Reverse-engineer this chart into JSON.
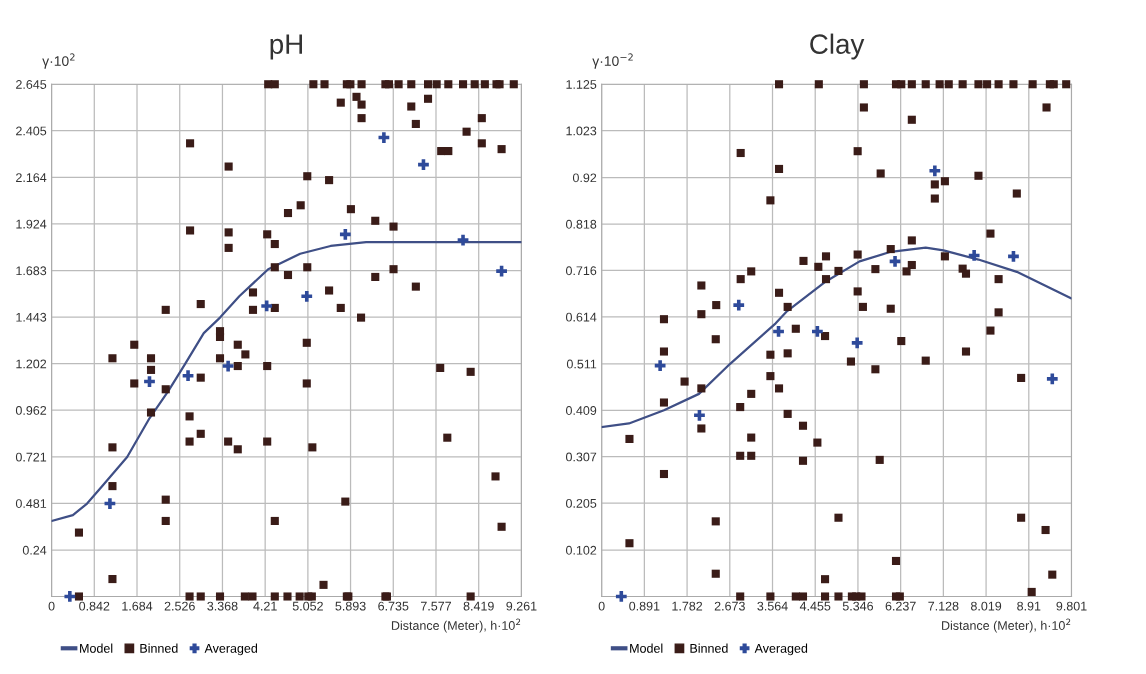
{
  "chart_data": [
    {
      "type": "scatter",
      "title": "pH",
      "xlabel": "Distance (Meter), h·10$^{2}$",
      "ylabel": "γ·10$^{2}$",
      "xlim": [
        0,
        9.261
      ],
      "ylim": [
        0,
        2.645
      ],
      "xticks": [
        0,
        0.842,
        1.684,
        2.526,
        3.368,
        4.21,
        5.052,
        5.893,
        6.735,
        7.577,
        8.419,
        9.261
      ],
      "yticks": [
        0.24,
        0.481,
        0.721,
        0.962,
        1.202,
        1.443,
        1.683,
        1.924,
        2.164,
        2.405,
        2.645
      ],
      "grid": true,
      "legend": "bottom left",
      "series": [
        {
          "name": "Model",
          "type": "line",
          "color": "#3f4f86",
          "marker": "none",
          "x": [
            0,
            0.42,
            0.7,
            1.0,
            1.49,
            1.93,
            2.3,
            2.63,
            3.0,
            3.32,
            3.7,
            4.27,
            4.9,
            5.5,
            6.2,
            7.5,
            9.261
          ],
          "values": [
            0.39,
            0.42,
            0.48,
            0.57,
            0.72,
            0.92,
            1.06,
            1.2,
            1.36,
            1.44,
            1.55,
            1.69,
            1.77,
            1.81,
            1.83,
            1.83,
            1.83
          ]
        },
        {
          "name": "Binned",
          "color": "#3a1c18",
          "marker": "square",
          "x": [
            0.54,
            2.72,
            2.94,
            3.32,
            3.81,
            3.96,
            4.4,
            4.65,
            4.89,
            5.06,
            5.13,
            5.82,
            5.85,
            6.58,
            6.61,
            8.26,
            0.54,
            1.2,
            1.2,
            1.2,
            1.2,
            1.63,
            1.63,
            1.96,
            1.96,
            1.96,
            2.25,
            2.25,
            2.25,
            2.72,
            2.72,
            2.94,
            2.94,
            3.32,
            3.32,
            3.48,
            3.67,
            3.67,
            3.67,
            3.82,
            4.25,
            4.25,
            4.4,
            5.03,
            5.03,
            5.14,
            5.36,
            5.79,
            7.66,
            7.8,
            8.26,
            8.75,
            8.87,
            6.1,
            4.27,
            4.4,
            5.16,
            5.38,
            5.82,
            5.89,
            6.11,
            6.58,
            6.65,
            6.84,
            7.09,
            7.42,
            7.59,
            7.82,
            8.11,
            8.34,
            8.54,
            8.77,
            8.83,
            9.11,
            5.7,
            6.01,
            6.11,
            6.11,
            7.09,
            7.42,
            7.18,
            8.48,
            8.18,
            8.48,
            7.68,
            7.82,
            8.87,
            2.73,
            3.49,
            5.04,
            5.47,
            4.91,
            4.66,
            5.9,
            6.38,
            6.74,
            2.73,
            3.49,
            3.49,
            4.25,
            4.4,
            4.4,
            4.66,
            5.04,
            6.74,
            6.38,
            7.18,
            5.47,
            3.97,
            3.97,
            4.4,
            2.94,
            2.25,
            5.7,
            3.32
          ],
          "values": [
            0,
            0,
            0,
            0,
            0,
            0,
            0,
            0,
            0,
            0,
            0,
            0,
            0,
            0,
            0,
            0,
            0.33,
            0.09,
            0.57,
            0.77,
            1.23,
            1.3,
            1.1,
            1.23,
            1.17,
            0.95,
            1.07,
            0.5,
            0.39,
            0.93,
            0.8,
            0.84,
            1.13,
            1.34,
            1.23,
            0.8,
            1.3,
            1.19,
            0.76,
            1.25,
            1.19,
            0.8,
            0.39,
            1.31,
            1.1,
            0.77,
            0.06,
            0.49,
            1.18,
            0.82,
            1.16,
            0.62,
            0.36,
            1.44,
            2.645,
            2.645,
            2.645,
            2.645,
            2.645,
            2.645,
            2.645,
            2.645,
            2.645,
            2.645,
            2.645,
            2.645,
            2.645,
            2.645,
            2.645,
            2.645,
            2.645,
            2.645,
            2.645,
            2.645,
            2.55,
            2.58,
            2.54,
            2.47,
            2.53,
            2.57,
            2.44,
            2.47,
            2.4,
            2.34,
            2.3,
            2.3,
            2.31,
            2.34,
            2.22,
            2.17,
            2.15,
            2.02,
            1.98,
            2.0,
            1.94,
            1.91,
            1.89,
            1.88,
            1.8,
            1.87,
            1.82,
            1.7,
            1.66,
            1.7,
            1.69,
            1.65,
            1.6,
            1.58,
            1.57,
            1.48,
            1.49,
            1.51,
            1.48,
            1.49,
            1.37
          ]
        },
        {
          "name": "Averaged",
          "color": "#2e4a9a",
          "marker": "cross",
          "x": [
            0.36,
            1.15,
            1.93,
            2.69,
            3.48,
            4.24,
            5.03,
            5.79,
            6.55,
            7.33,
            8.11,
            8.87
          ],
          "values": [
            0,
            0.48,
            1.11,
            1.14,
            1.19,
            1.5,
            1.55,
            1.87,
            2.37,
            2.23,
            1.84,
            1.68
          ]
        }
      ]
    },
    {
      "type": "scatter",
      "title": "Clay",
      "xlabel": "Distance (Meter), h·10$^{2}$",
      "ylabel": "γ·10$^{−2}$",
      "xlim": [
        0,
        9.801
      ],
      "ylim": [
        0,
        1.125
      ],
      "xticks": [
        0,
        0.891,
        1.782,
        2.673,
        3.564,
        4.455,
        5.346,
        6.237,
        7.128,
        8.019,
        8.91,
        9.801
      ],
      "yticks": [
        0.102,
        0.205,
        0.307,
        0.409,
        0.511,
        0.614,
        0.716,
        0.818,
        0.92,
        1.023,
        1.125
      ],
      "grid": true,
      "legend": "bottom left",
      "series": [
        {
          "name": "Model",
          "type": "line",
          "color": "#3f4f86",
          "marker": "none",
          "x": [
            0,
            0.57,
            1.3,
            2.03,
            2.68,
            3.63,
            3.85,
            4.65,
            5.38,
            6.03,
            6.76,
            7.13,
            7.86,
            8.66,
            9.79
          ],
          "values": [
            0.372,
            0.38,
            0.409,
            0.445,
            0.511,
            0.6,
            0.625,
            0.69,
            0.736,
            0.757,
            0.766,
            0.76,
            0.74,
            0.713,
            0.655
          ]
        },
        {
          "name": "Binned",
          "color": "#3a1c18",
          "marker": "square",
          "x": [
            2.89,
            3.52,
            4.05,
            4.2,
            4.66,
            4.94,
            5.22,
            5.31,
            5.42,
            6.14,
            6.22,
            8.97,
            0.58,
            0.58,
            1.3,
            1.3,
            1.3,
            1.3,
            1.73,
            2.08,
            2.08,
            2.38,
            2.38,
            2.38,
            2.89,
            2.89,
            3.12,
            3.12,
            3.12,
            3.52,
            3.52,
            3.7,
            3.88,
            3.88,
            4.05,
            4.2,
            4.2,
            4.5,
            4.66,
            4.66,
            4.94,
            5.2,
            5.71,
            5.8,
            6.14,
            6.25,
            6.76,
            7.6,
            8.11,
            8.75,
            8.75,
            9.26,
            9.4,
            3.7,
            4.53,
            5.47,
            6.14,
            6.25,
            6.47,
            6.76,
            7.05,
            7.24,
            7.53,
            7.86,
            8.04,
            8.28,
            8.59,
            8.99,
            9.35,
            9.43,
            9.69,
            5.47,
            6.47,
            9.28,
            2.9,
            5.34,
            3.7,
            5.82,
            6.95,
            6.95,
            7.16,
            7.86,
            3.52,
            8.66,
            8.11,
            6.47,
            6.03,
            5.34,
            7.16,
            4.21,
            4.68,
            4.68,
            4.52,
            4.94,
            5.71,
            6.47,
            6.36,
            7.53,
            7.6,
            8.28,
            3.12,
            2.9,
            2.08,
            2.39,
            2.08,
            3.7,
            3.88,
            5.34,
            5.45,
            6.03,
            8.28
          ],
          "values": [
            0,
            0,
            0,
            0,
            0,
            0,
            0,
            0,
            0,
            0,
            0,
            0.01,
            0.346,
            0.117,
            0.269,
            0.426,
            0.538,
            0.609,
            0.472,
            0.457,
            0.369,
            0.165,
            0.05,
            0.565,
            0.416,
            0.309,
            0.445,
            0.349,
            0.309,
            0.531,
            0.484,
            0.457,
            0.534,
            0.401,
            0.588,
            0.375,
            0.298,
            0.338,
            0.572,
            0.038,
            0.173,
            0.516,
            0.499,
            0.3,
            0.078,
            0.561,
            0.518,
            0.538,
            0.584,
            0.48,
            0.173,
            0.146,
            0.048,
            1.125,
            1.125,
            1.125,
            1.125,
            1.125,
            1.125,
            1.125,
            1.125,
            1.125,
            1.125,
            1.125,
            1.125,
            1.125,
            1.125,
            1.125,
            1.125,
            1.125,
            1.125,
            1.074,
            1.047,
            1.074,
            0.974,
            0.978,
            0.939,
            0.929,
            0.905,
            0.874,
            0.912,
            0.924,
            0.87,
            0.885,
            0.797,
            0.782,
            0.763,
            0.751,
            0.747,
            0.737,
            0.747,
            0.697,
            0.724,
            0.715,
            0.719,
            0.728,
            0.714,
            0.72,
            0.709,
            0.697,
            0.714,
            0.697,
            0.683,
            0.64,
            0.62,
            0.667,
            0.636,
            0.67,
            0.636,
            0.632,
            0.624
          ]
        },
        {
          "name": "Averaged",
          "color": "#2e4a9a",
          "marker": "cross",
          "x": [
            0.41,
            1.22,
            2.04,
            2.86,
            3.69,
            4.5,
            5.33,
            6.12,
            6.95,
            7.77,
            8.59,
            9.4
          ],
          "values": [
            0,
            0.507,
            0.398,
            0.64,
            0.582,
            0.582,
            0.557,
            0.736,
            0.935,
            0.749,
            0.747,
            0.478
          ]
        }
      ]
    }
  ]
}
